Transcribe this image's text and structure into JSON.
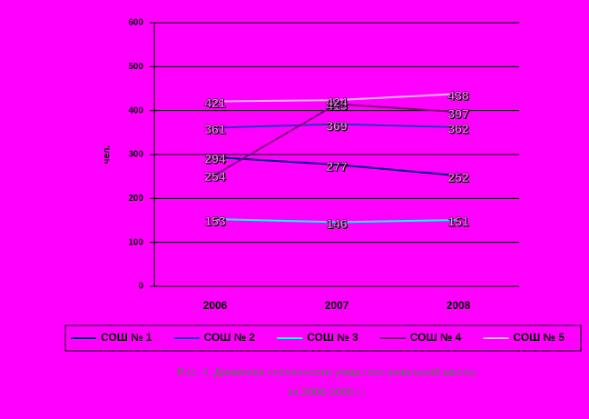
{
  "chart_data": {
    "type": "line",
    "y_label": "чел.",
    "categories": [
      "2006",
      "2007",
      "2008"
    ],
    "series": [
      {
        "name": "СОШ № 1",
        "color": "#000080",
        "values": [
          294,
          277,
          252
        ]
      },
      {
        "name": "СОШ № 2",
        "color": "#3030c0",
        "values": [
          361,
          369,
          362
        ]
      },
      {
        "name": "СОШ № 3",
        "color": "#00ffff",
        "values": [
          153,
          146,
          151
        ]
      },
      {
        "name": "СОШ № 4",
        "color": "#800080",
        "values": [
          254,
          415,
          397
        ]
      },
      {
        "name": "СОШ № 5",
        "color": "#ffb0ff",
        "values": [
          421,
          424,
          438
        ]
      }
    ],
    "ylim": [
      0,
      600
    ],
    "yticks": [
      0,
      100,
      200,
      300,
      400,
      500,
      600
    ],
    "grid": true,
    "legend": "bottom",
    "caption": [
      "Рис. 4. Динамика численности учащихся начальной школы",
      "за 2006-2008 гг."
    ]
  }
}
